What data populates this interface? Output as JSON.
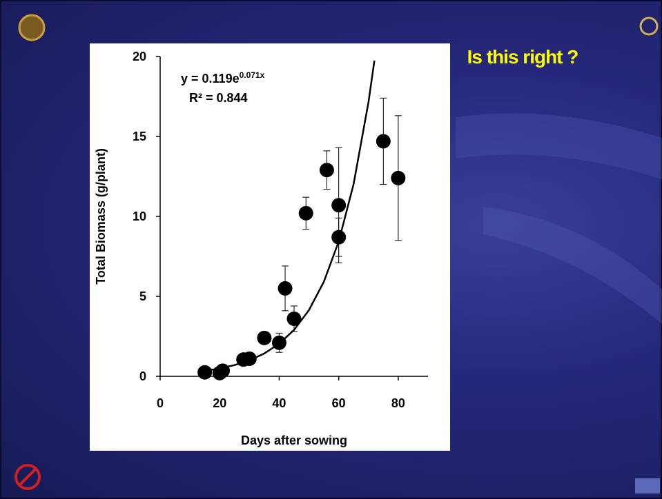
{
  "slide": {
    "heading": "Is this right ?"
  },
  "chart_data": {
    "type": "scatter",
    "xlabel": "Days after sowing",
    "ylabel": "Total Biomass (g/plant)",
    "equation": {
      "base": "y = 0.119e",
      "exponent": "0.071x"
    },
    "r_squared": "R² = 0.844",
    "xlim": [
      0,
      90
    ],
    "xticks": [
      0,
      20,
      40,
      60,
      80
    ],
    "ylim": [
      0,
      20
    ],
    "yticks": [
      0,
      5,
      10,
      15,
      20
    ],
    "series": [
      {
        "mode": "markers",
        "color": "#000000",
        "x": [
          15,
          20,
          21,
          28,
          30,
          35,
          40,
          42,
          45,
          49,
          56,
          60,
          60,
          75,
          80
        ],
        "values": [
          0.25,
          0.2,
          0.35,
          1.05,
          1.1,
          2.4,
          2.1,
          5.5,
          3.6,
          10.2,
          12.9,
          10.7,
          8.7,
          14.7,
          12.4
        ],
        "errors": [
          0,
          0,
          0,
          0,
          0,
          0,
          0.6,
          1.4,
          0.8,
          1.0,
          1.2,
          3.6,
          1.2,
          2.7,
          3.9
        ]
      },
      {
        "mode": "line",
        "color": "#000000",
        "x": [
          15,
          20,
          25,
          30,
          35,
          40,
          45,
          50,
          55,
          60,
          65,
          70,
          72
        ],
        "values": [
          0.345,
          0.492,
          0.702,
          1.0,
          1.43,
          2.04,
          2.9,
          4.14,
          5.91,
          8.43,
          12.02,
          17.14,
          19.75
        ]
      }
    ]
  }
}
